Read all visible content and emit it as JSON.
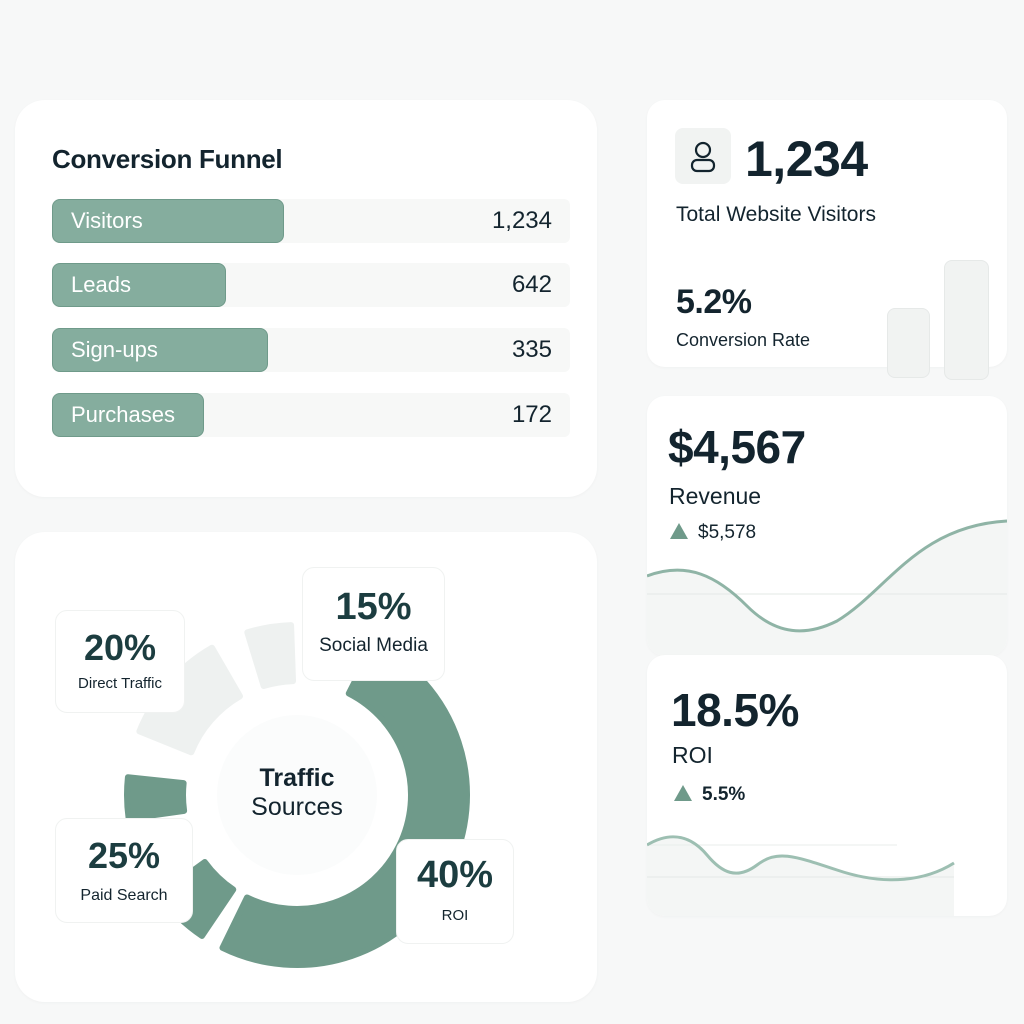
{
  "funnel": {
    "title": "Conversion Funnel",
    "rows": [
      {
        "label": "Visitors",
        "value": "1,234",
        "fill": 1.0
      },
      {
        "label": "Leads",
        "value": "642",
        "fill": 0.52
      },
      {
        "label": "Sign-ups",
        "value": "335",
        "fill": 0.27
      },
      {
        "label": "Purchases",
        "value": "172",
        "fill": 0.14
      }
    ]
  },
  "visitors": {
    "icon": "user-icon",
    "value": "1,234",
    "label": "Total Website Visitors",
    "rate": "5.2%",
    "rate_label": "Conversion Rate"
  },
  "revenue": {
    "value": "$4,567",
    "label": "Revenue",
    "delta": "$5,578"
  },
  "roi": {
    "value": "18.5%",
    "label": "ROI",
    "delta": "5.5%"
  },
  "traffic": {
    "title": "Traffic",
    "subtitle": "Sources",
    "segments": [
      {
        "pct": "15%",
        "label": "Social Media"
      },
      {
        "pct": "20%",
        "label": "Direct Traffic"
      },
      {
        "pct": "25%",
        "label": "Paid Search"
      },
      {
        "pct": "40%",
        "label": "ROI"
      }
    ]
  },
  "colors": {
    "accent": "#6f9a8a",
    "bar": "#85ad9e",
    "light": "#eef1f0",
    "text": "#13242e"
  }
}
